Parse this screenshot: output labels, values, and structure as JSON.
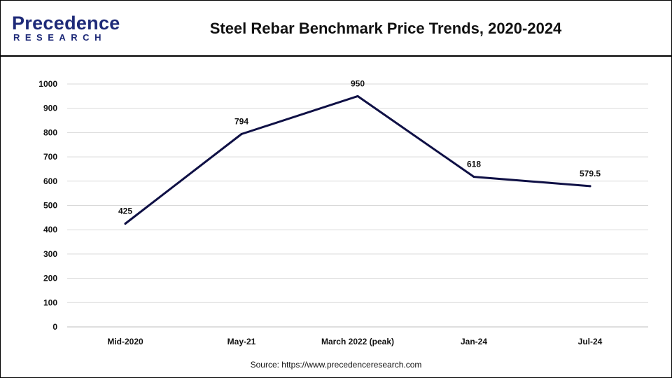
{
  "header": {
    "logo_top": "Precedence",
    "logo_bottom": "RESEARCH",
    "title": "Steel Rebar Benchmark Price Trends, 2020-2024"
  },
  "source": "Source: https://www.precedenceresearch.com",
  "colors": {
    "line": "#0f1045",
    "brand": "#1e2a78",
    "brand_accent": "#2ec4d6",
    "grid": "#d9d9d9"
  },
  "chart_data": {
    "type": "line",
    "title": "Steel Rebar Benchmark Price Trends, 2020-2024",
    "categories": [
      "Mid-2020",
      "May-21",
      "March 2022 (peak)",
      "Jan-24",
      "Jul-24"
    ],
    "series": [
      {
        "values": [
          425,
          794,
          950,
          618,
          579.5
        ]
      }
    ],
    "data_labels": [
      "425",
      "794",
      "950",
      "618",
      "579.5"
    ],
    "yticks": [
      "0",
      "100",
      "200",
      "300",
      "400",
      "500",
      "600",
      "700",
      "800",
      "900",
      "1000"
    ],
    "ylim": [
      0,
      1000
    ],
    "xlabel": "",
    "ylabel": "",
    "grid": true,
    "legend": "none"
  }
}
